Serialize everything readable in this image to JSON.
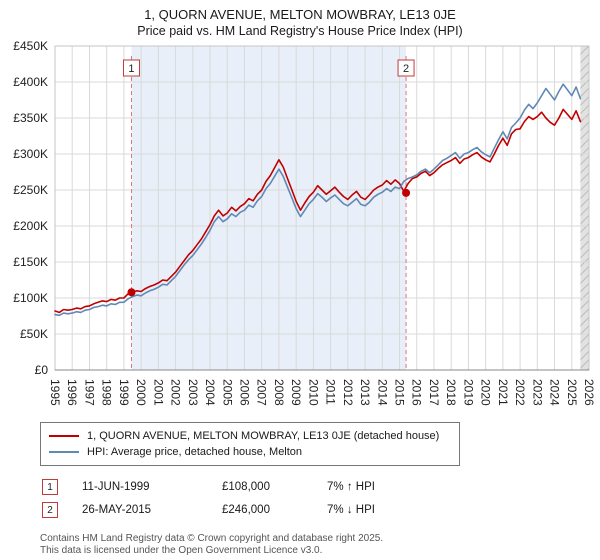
{
  "title": "1, QUORN AVENUE, MELTON MOWBRAY, LE13 0JE",
  "subtitle": "Price paid vs. HM Land Registry's House Price Index (HPI)",
  "chart_data": {
    "type": "line",
    "x_start": 1995,
    "x_end": 2026,
    "ylim": [
      0,
      450000
    ],
    "y_tick_step": 50000,
    "y_tick_labels": [
      "£0",
      "£50K",
      "£100K",
      "£150K",
      "£200K",
      "£250K",
      "£300K",
      "£350K",
      "£400K",
      "£450K"
    ],
    "x_tick_labels": [
      "1995",
      "1996",
      "1997",
      "1998",
      "1999",
      "2000",
      "2001",
      "2002",
      "2003",
      "2004",
      "2005",
      "2006",
      "2007",
      "2008",
      "2009",
      "2010",
      "2011",
      "2012",
      "2013",
      "2014",
      "2015",
      "2016",
      "2017",
      "2018",
      "2019",
      "2020",
      "2021",
      "2022",
      "2023",
      "2024",
      "2025",
      "2026"
    ],
    "values_unit": "GBP_thousands",
    "grid": true,
    "legend_position": "below",
    "colors": {
      "shade": "#e9eff9",
      "dashed_line": "#dd7777",
      "marker_box_border": "#c23b3b",
      "grid": "#d9d9d9",
      "dot": "#c00000",
      "future_band_bg": "#e2e2e2",
      "future_band_line": "#bbbbbb"
    },
    "shaded_region": {
      "from": 1999.44,
      "to": 2015.38
    },
    "future_band": {
      "from": 2025.5,
      "to": 2026
    },
    "markers": [
      {
        "label": "1",
        "x": 1999.44,
        "value_k": 108,
        "date": "11-JUN-1999"
      },
      {
        "label": "2",
        "x": 2015.38,
        "value_k": 246,
        "date": "26-MAY-2015"
      }
    ],
    "series": [
      {
        "name": "1, QUORN AVENUE, MELTON MOWBRAY, LE13 0JE (detached house)",
        "color": "#c00000",
        "x_first": 1995.0,
        "x_step": 0.25,
        "values": [
          82,
          80,
          84,
          83,
          84,
          86,
          85,
          88,
          89,
          92,
          94,
          96,
          95,
          98,
          97,
          100,
          100,
          106,
          108,
          110,
          109,
          113,
          116,
          118,
          121,
          125,
          124,
          130,
          136,
          144,
          152,
          160,
          166,
          174,
          182,
          192,
          202,
          214,
          222,
          214,
          218,
          226,
          221,
          227,
          231,
          238,
          235,
          244,
          250,
          262,
          270,
          281,
          292,
          282,
          266,
          250,
          234,
          222,
          232,
          241,
          247,
          256,
          250,
          244,
          249,
          254,
          247,
          241,
          237,
          243,
          248,
          240,
          237,
          243,
          250,
          254,
          257,
          263,
          258,
          264,
          259,
          248,
          259,
          266,
          268,
          273,
          276,
          270,
          274,
          280,
          285,
          288,
          291,
          295,
          287,
          293,
          295,
          299,
          302,
          296,
          292,
          289,
          300,
          312,
          322,
          312,
          328,
          334,
          335,
          345,
          352,
          348,
          352,
          358,
          350,
          344,
          340,
          350,
          362,
          355,
          348,
          360,
          345
        ]
      },
      {
        "name": "HPI: Average price, detached house, Melton",
        "color": "#6189b4",
        "x_first": 1995.0,
        "x_step": 0.25,
        "values": [
          77,
          76,
          79,
          78,
          79,
          81,
          80,
          83,
          84,
          87,
          88,
          90,
          89,
          92,
          91,
          94,
          94,
          99,
          102,
          104,
          103,
          107,
          110,
          112,
          115,
          119,
          118,
          124,
          130,
          138,
          146,
          153,
          159,
          167,
          175,
          184,
          194,
          206,
          213,
          206,
          210,
          217,
          213,
          219,
          222,
          229,
          226,
          235,
          241,
          252,
          259,
          269,
          279,
          269,
          254,
          239,
          224,
          213,
          222,
          231,
          237,
          245,
          240,
          234,
          239,
          243,
          237,
          231,
          228,
          233,
          238,
          230,
          228,
          233,
          240,
          244,
          247,
          252,
          248,
          254,
          252,
          262,
          266,
          268,
          271,
          276,
          279,
          274,
          279,
          285,
          291,
          294,
          298,
          302,
          294,
          300,
          302,
          306,
          309,
          303,
          299,
          296,
          308,
          320,
          331,
          321,
          337,
          343,
          350,
          361,
          369,
          363,
          371,
          381,
          391,
          383,
          375,
          387,
          397,
          389,
          381,
          393,
          377
        ]
      }
    ]
  },
  "legend": {
    "items": [
      {
        "label": "1, QUORN AVENUE, MELTON MOWBRAY, LE13 0JE (detached house)",
        "color": "#c00000"
      },
      {
        "label": "HPI: Average price, detached house, Melton",
        "color": "#6189b4"
      }
    ]
  },
  "transactions": [
    {
      "num": "1",
      "date": "11-JUN-1999",
      "price": "£108,000",
      "hpi_delta": "7% ↑ HPI"
    },
    {
      "num": "2",
      "date": "26-MAY-2015",
      "price": "£246,000",
      "hpi_delta": "7% ↓ HPI"
    }
  ],
  "footer": {
    "line1": "Contains HM Land Registry data © Crown copyright and database right 2025.",
    "line2": "This data is licensed under the Open Government Licence v3.0."
  }
}
